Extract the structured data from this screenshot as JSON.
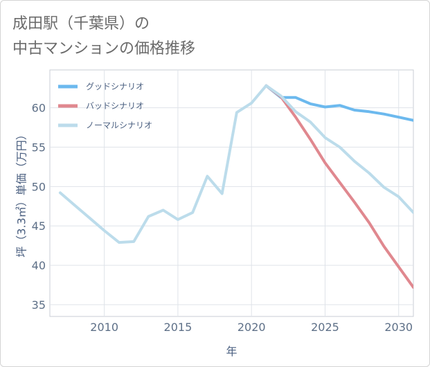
{
  "title": {
    "line1": "成田駅（千葉県）の",
    "line2": "中古マンションの価格推移"
  },
  "chart_data": {
    "type": "line",
    "xlabel": "年",
    "ylabel": "坪（3.3㎡）単価（万円）",
    "xlim": [
      2006.3,
      2031
    ],
    "ylim": [
      33.5,
      64.8
    ],
    "xticks": [
      2010,
      2015,
      2020,
      2025,
      2030
    ],
    "yticks": [
      35,
      40,
      45,
      50,
      55,
      60
    ],
    "legend_position": "top-left",
    "series": [
      {
        "name": "グッドシナリオ",
        "color": "#6cb9ee",
        "x": [
          2021,
          2022,
          2023,
          2024,
          2025,
          2026,
          2027,
          2028,
          2029,
          2030,
          2031
        ],
        "y": [
          62.8,
          61.3,
          61.3,
          60.5,
          60.1,
          60.3,
          59.7,
          59.5,
          59.2,
          58.8,
          58.4
        ]
      },
      {
        "name": "バッドシナリオ",
        "color": "#e0888f",
        "x": [
          2021,
          2022,
          2023,
          2024,
          2025,
          2026,
          2027,
          2028,
          2029,
          2030,
          2031
        ],
        "y": [
          62.8,
          61.4,
          58.8,
          56.0,
          53.0,
          50.5,
          48.0,
          45.4,
          42.4,
          39.8,
          37.2
        ]
      },
      {
        "name": "ノーマルシナリオ",
        "color": "#bcdceb",
        "x": [
          2007,
          2008,
          2009,
          2010,
          2011,
          2012,
          2013,
          2014,
          2015,
          2016,
          2017,
          2018,
          2019,
          2020,
          2021,
          2022,
          2023,
          2024,
          2025,
          2026,
          2027,
          2028,
          2029,
          2030,
          2031
        ],
        "y": [
          49.2,
          47.6,
          46.0,
          44.4,
          42.9,
          43.0,
          46.2,
          47.0,
          45.8,
          46.7,
          51.3,
          49.1,
          59.4,
          60.6,
          62.8,
          61.5,
          59.5,
          58.2,
          56.2,
          55.0,
          53.2,
          51.7,
          49.9,
          48.7,
          46.7
        ]
      }
    ]
  }
}
